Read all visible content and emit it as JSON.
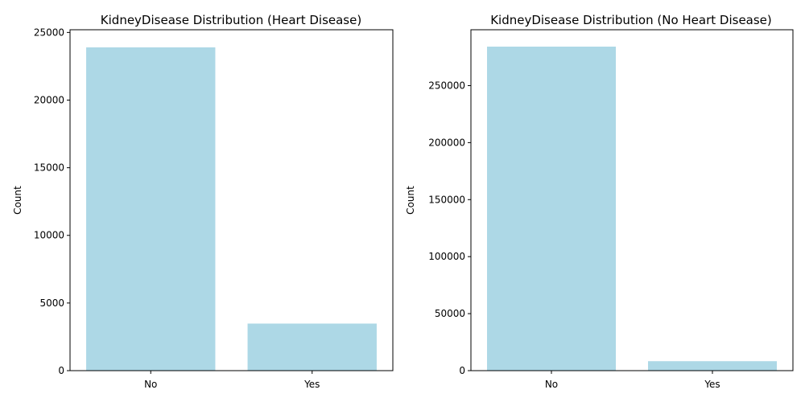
{
  "chart_data": [
    {
      "type": "bar",
      "title": "KidneyDisease Distribution (Heart Disease)",
      "xlabel": "",
      "ylabel": "Count",
      "categories": [
        "No",
        "Yes"
      ],
      "values": [
        23900,
        3480
      ],
      "ylim": [
        0,
        25200
      ],
      "yticks": [
        0,
        5000,
        10000,
        15000,
        20000,
        25000
      ],
      "bar_color": "#add8e6",
      "grid": false
    },
    {
      "type": "bar",
      "title": "KidneyDisease Distribution (No Heart Disease)",
      "xlabel": "",
      "ylabel": "Count",
      "categories": [
        "No",
        "Yes"
      ],
      "values": [
        284200,
        8300
      ],
      "ylim": [
        0,
        299000
      ],
      "yticks": [
        0,
        50000,
        100000,
        150000,
        200000,
        250000
      ],
      "bar_color": "#add8e6",
      "grid": false
    }
  ]
}
